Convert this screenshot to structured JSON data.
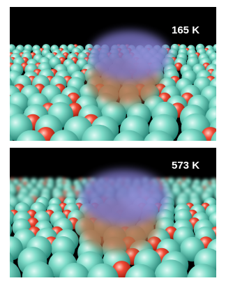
{
  "panels": [
    {
      "label": "165 K"
    },
    {
      "label": "573 K"
    }
  ]
}
